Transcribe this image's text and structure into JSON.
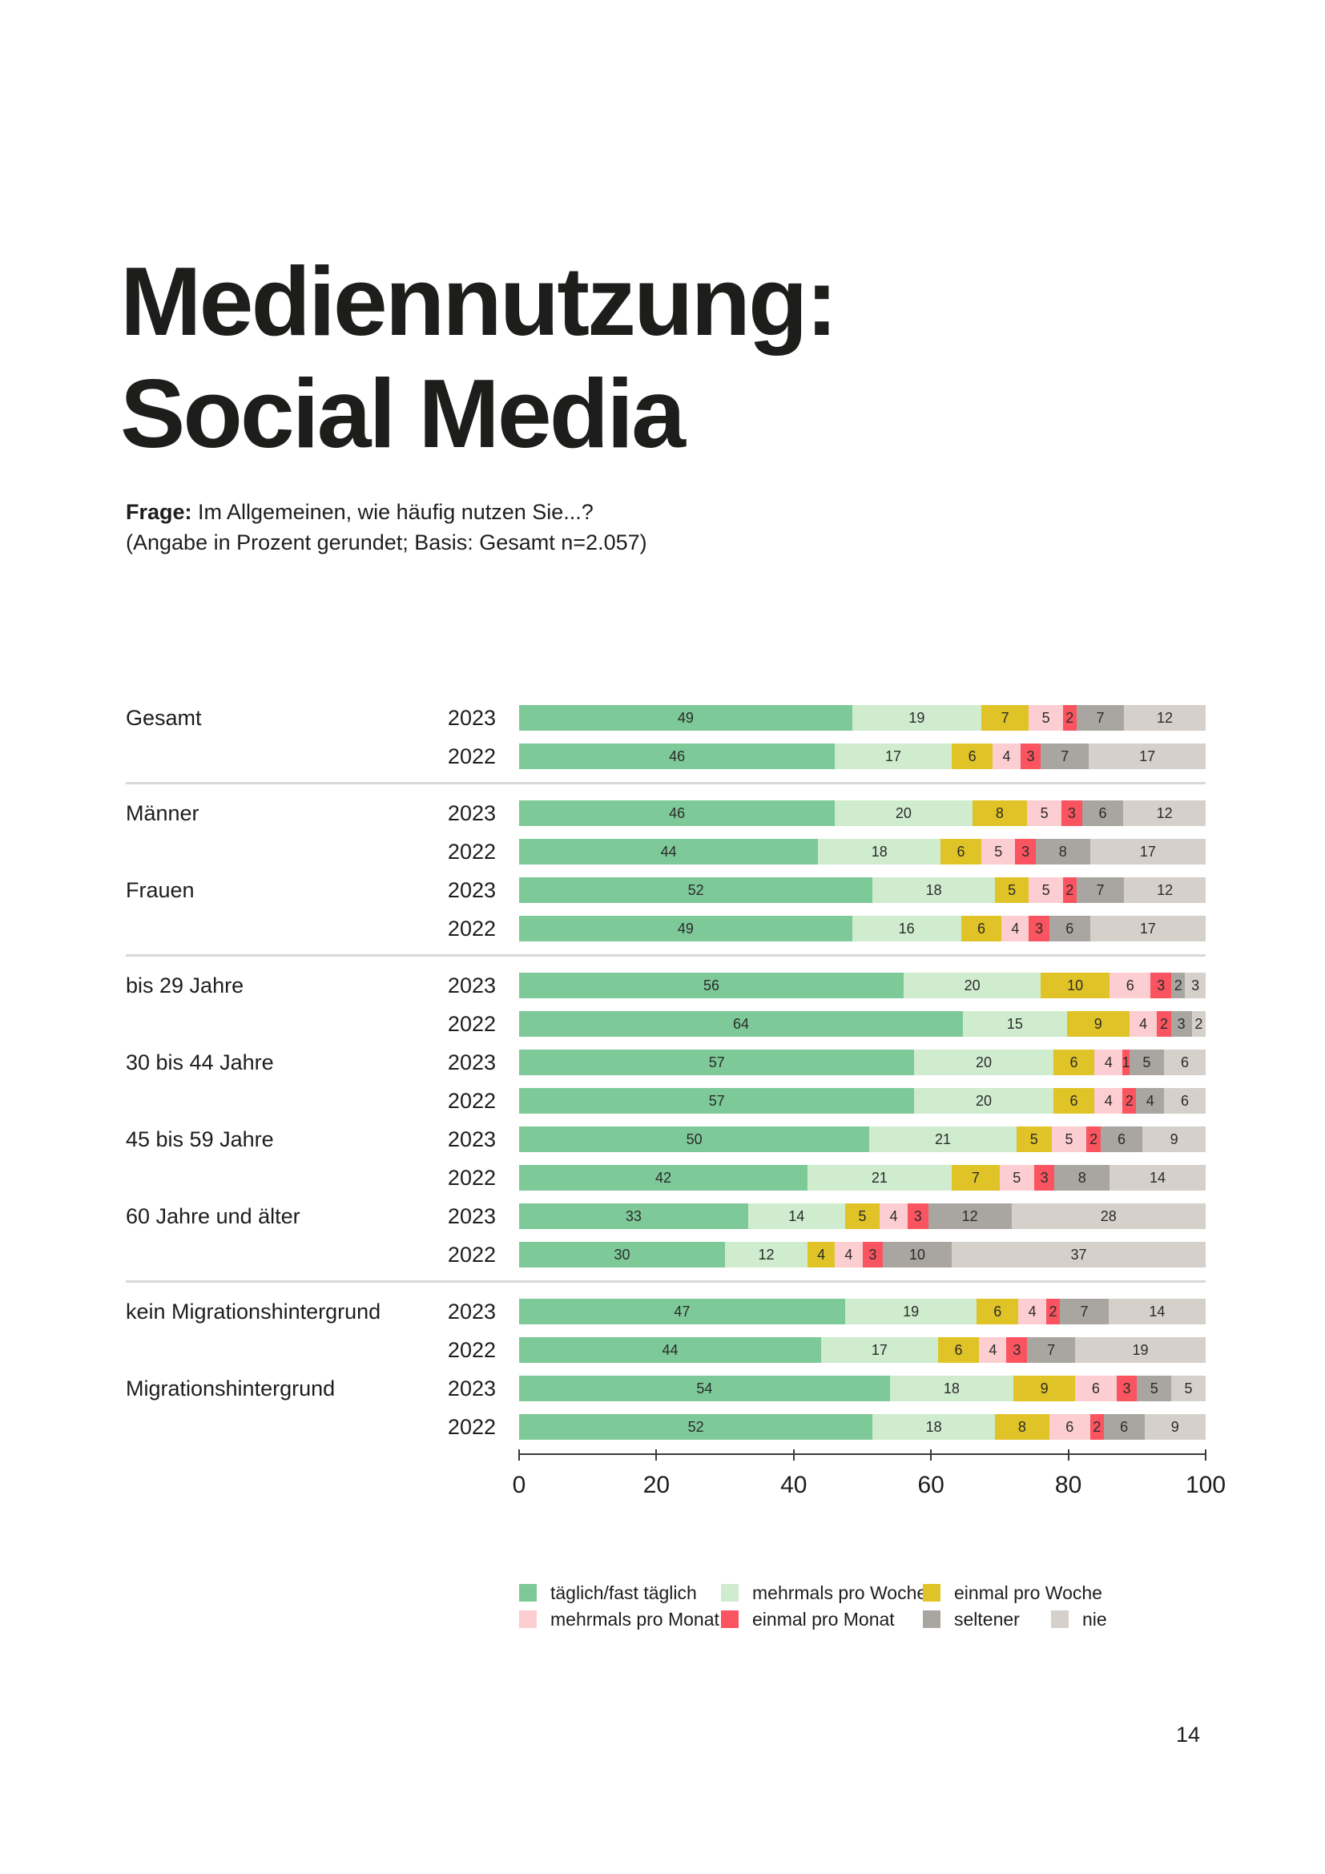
{
  "page": {
    "title_line1": "Mediennutzung:",
    "title_line2": "Social Media",
    "question_label": "Frage:",
    "question_text": " Im Allgemeinen, wie häufig nutzen Sie...?",
    "basis_text": "(Angabe in Prozent gerundet; Basis: Gesamt n=2.057)",
    "page_number": "14"
  },
  "chart_data": {
    "type": "bar",
    "stacked": true,
    "orientation": "horizontal",
    "unit": "percent",
    "xlim": [
      0,
      100
    ],
    "x_ticks": [
      "0",
      "20",
      "40",
      "60",
      "80",
      "100"
    ],
    "grid": false,
    "legend_position": "bottom",
    "legend": [
      {
        "label": "täglich/fast täglich",
        "color": "#7dc998",
        "row": 1
      },
      {
        "label": "mehrmals pro Woche",
        "color": "#cfeccf",
        "row": 1
      },
      {
        "label": "einmal pro Woche",
        "color": "#e0c326",
        "row": 1
      },
      {
        "label": "mehrmals pro Monat",
        "color": "#fccdd1",
        "row": 2
      },
      {
        "label": "einmal pro Monat",
        "color": "#f9545f",
        "row": 2
      },
      {
        "label": "seltener",
        "color": "#a9a5a0",
        "row": 2
      },
      {
        "label": "nie",
        "color": "#d5d0c9",
        "row": 2
      }
    ],
    "groups": [
      {
        "label": "Gesamt",
        "divider_before": false,
        "rows": [
          {
            "year": "2023",
            "values": [
              49,
              19,
              7,
              5,
              2,
              7,
              12
            ]
          },
          {
            "year": "2022",
            "values": [
              46,
              17,
              6,
              4,
              3,
              7,
              17
            ]
          }
        ]
      },
      {
        "label": "Männer",
        "divider_before": true,
        "rows": [
          {
            "year": "2023",
            "values": [
              46,
              20,
              8,
              5,
              3,
              6,
              12
            ]
          },
          {
            "year": "2022",
            "values": [
              44,
              18,
              6,
              5,
              3,
              8,
              17
            ]
          }
        ]
      },
      {
        "label": "Frauen",
        "divider_before": false,
        "rows": [
          {
            "year": "2023",
            "values": [
              52,
              18,
              5,
              5,
              2,
              7,
              12
            ]
          },
          {
            "year": "2022",
            "values": [
              49,
              16,
              6,
              4,
              3,
              6,
              17
            ]
          }
        ]
      },
      {
        "label": "bis 29 Jahre",
        "divider_before": true,
        "rows": [
          {
            "year": "2023",
            "values": [
              56,
              20,
              10,
              6,
              3,
              2,
              3
            ]
          },
          {
            "year": "2022",
            "values": [
              64,
              15,
              9,
              4,
              2,
              3,
              2
            ]
          }
        ]
      },
      {
        "label": "30 bis 44 Jahre",
        "divider_before": false,
        "rows": [
          {
            "year": "2023",
            "values": [
              57,
              20,
              6,
              4,
              1,
              5,
              6
            ]
          },
          {
            "year": "2022",
            "values": [
              57,
              20,
              6,
              4,
              2,
              4,
              6
            ]
          }
        ]
      },
      {
        "label": "45 bis 59 Jahre",
        "divider_before": false,
        "rows": [
          {
            "year": "2023",
            "values": [
              50,
              21,
              5,
              5,
              2,
              6,
              9
            ]
          },
          {
            "year": "2022",
            "values": [
              42,
              21,
              7,
              5,
              3,
              8,
              14
            ]
          }
        ]
      },
      {
        "label": "60 Jahre und älter",
        "divider_before": false,
        "rows": [
          {
            "year": "2023",
            "values": [
              33,
              14,
              5,
              4,
              3,
              12,
              28
            ]
          },
          {
            "year": "2022",
            "values": [
              30,
              12,
              4,
              4,
              3,
              10,
              37
            ]
          }
        ]
      },
      {
        "label": "kein Migrationshintergrund",
        "divider_before": true,
        "rows": [
          {
            "year": "2023",
            "values": [
              47,
              19,
              6,
              4,
              2,
              7,
              14
            ]
          },
          {
            "year": "2022",
            "values": [
              44,
              17,
              6,
              4,
              3,
              7,
              19
            ]
          }
        ]
      },
      {
        "label": "Migrationshintergrund",
        "divider_before": false,
        "rows": [
          {
            "year": "2023",
            "values": [
              54,
              18,
              9,
              6,
              3,
              5,
              5
            ]
          },
          {
            "year": "2022",
            "values": [
              52,
              18,
              8,
              6,
              2,
              6,
              9
            ]
          }
        ]
      }
    ]
  }
}
